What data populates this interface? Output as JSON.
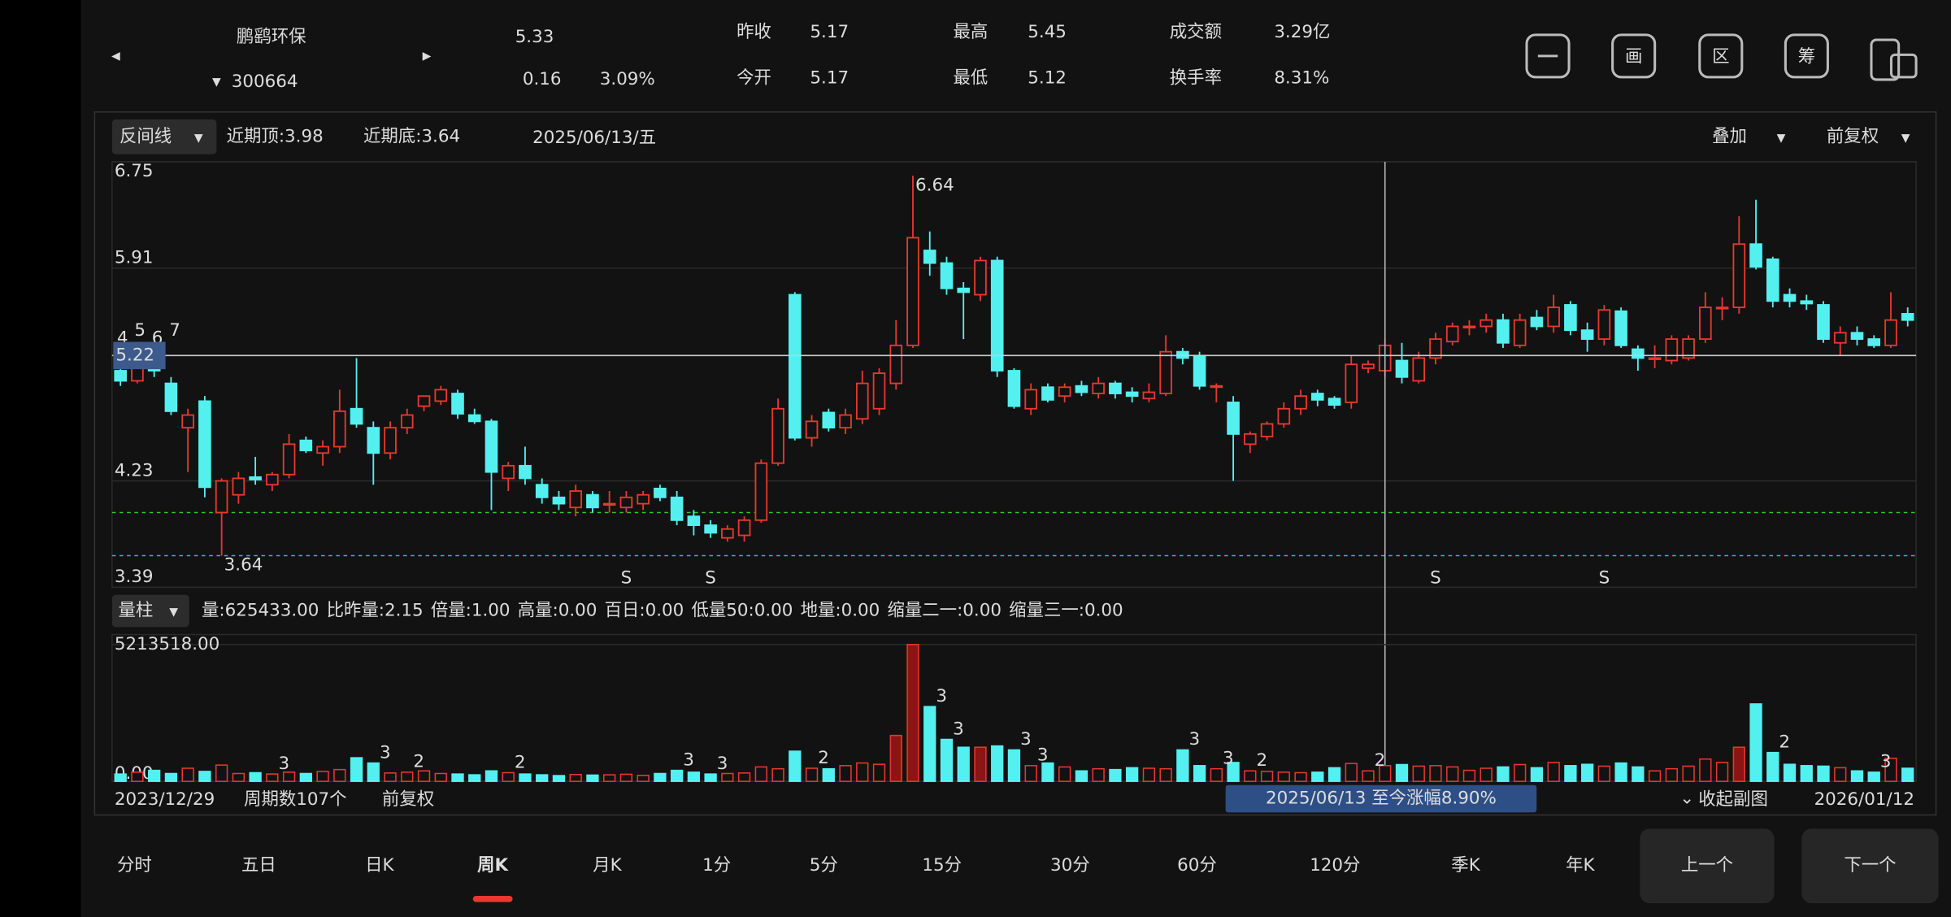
{
  "header": {
    "name": "鹏鹞环保",
    "code": "300664",
    "price": "5.33",
    "change": "0.16",
    "change_pct": "3.09%",
    "stats": [
      {
        "label": "昨收",
        "value": "5.17"
      },
      {
        "label": "今开",
        "value": "5.17"
      },
      {
        "label": "最高",
        "value": "5.45"
      },
      {
        "label": "最低",
        "value": "5.12"
      },
      {
        "label": "成交额",
        "value": "3.29亿"
      },
      {
        "label": "换手率",
        "value": "8.31%"
      }
    ],
    "tools": [
      "画",
      "区",
      "筹"
    ]
  },
  "chart": {
    "type": "candlestick",
    "indicator": "反间线",
    "recent_top_label": "近期顶:",
    "recent_top": 3.98,
    "recent_bottom_label": "近期底:",
    "recent_bottom": 3.64,
    "date": "2025/06/13/五",
    "overlay": "叠加",
    "adjust": "前复权",
    "ylim": [
      3.39,
      6.75
    ],
    "yticks": [
      6.75,
      5.91,
      4.23,
      3.39
    ],
    "crosshair": {
      "index": 75,
      "price": 5.22
    },
    "annotations": [
      {
        "index": 47,
        "price": 6.64
      },
      {
        "index": 6,
        "price": 3.64
      }
    ],
    "ma_digits": [
      "4",
      "5",
      "6",
      "7"
    ],
    "up_color": "#e8382f",
    "down_color": "#54f0f0",
    "candles": [
      [
        5.1,
        5.15,
        4.98,
        5.02
      ],
      [
        5.02,
        5.18,
        5.0,
        5.12
      ],
      [
        5.12,
        5.25,
        5.05,
        5.1
      ],
      [
        5.0,
        5.05,
        4.75,
        4.78
      ],
      [
        4.65,
        4.8,
        4.3,
        4.75
      ],
      [
        4.86,
        4.9,
        4.1,
        4.18
      ],
      [
        3.98,
        4.25,
        3.64,
        4.23
      ],
      [
        4.12,
        4.3,
        4.05,
        4.25
      ],
      [
        4.26,
        4.42,
        4.2,
        4.24
      ],
      [
        4.2,
        4.3,
        4.15,
        4.28
      ],
      [
        4.28,
        4.6,
        4.25,
        4.52
      ],
      [
        4.55,
        4.58,
        4.45,
        4.47
      ],
      [
        4.45,
        4.55,
        4.35,
        4.5
      ],
      [
        4.5,
        4.95,
        4.45,
        4.78
      ],
      [
        4.8,
        5.2,
        4.65,
        4.68
      ],
      [
        4.65,
        4.7,
        4.2,
        4.45
      ],
      [
        4.45,
        4.7,
        4.4,
        4.65
      ],
      [
        4.65,
        4.8,
        4.6,
        4.75
      ],
      [
        4.82,
        4.9,
        4.78,
        4.9
      ],
      [
        4.86,
        4.98,
        4.83,
        4.95
      ],
      [
        4.92,
        4.95,
        4.72,
        4.76
      ],
      [
        4.75,
        4.8,
        4.68,
        4.7
      ],
      [
        4.7,
        4.72,
        4.0,
        4.3
      ],
      [
        4.25,
        4.38,
        4.15,
        4.35
      ],
      [
        4.35,
        4.5,
        4.2,
        4.25
      ],
      [
        4.2,
        4.25,
        4.05,
        4.1
      ],
      [
        4.1,
        4.15,
        4.0,
        4.05
      ],
      [
        4.02,
        4.2,
        3.95,
        4.15
      ],
      [
        4.12,
        4.15,
        3.98,
        4.02
      ],
      [
        4.05,
        4.15,
        3.98,
        4.05
      ],
      [
        4.02,
        4.15,
        3.98,
        4.1
      ],
      [
        4.05,
        4.15,
        4.0,
        4.12
      ],
      [
        4.17,
        4.2,
        4.07,
        4.1
      ],
      [
        4.1,
        4.15,
        3.88,
        3.92
      ],
      [
        3.95,
        4.0,
        3.8,
        3.88
      ],
      [
        3.88,
        3.92,
        3.78,
        3.82
      ],
      [
        3.78,
        3.88,
        3.75,
        3.85
      ],
      [
        3.8,
        3.95,
        3.75,
        3.92
      ],
      [
        3.92,
        4.4,
        3.9,
        4.37
      ],
      [
        4.37,
        4.88,
        4.35,
        4.8
      ],
      [
        5.7,
        5.72,
        4.55,
        4.57
      ],
      [
        4.57,
        4.75,
        4.5,
        4.7
      ],
      [
        4.77,
        4.8,
        4.62,
        4.65
      ],
      [
        4.65,
        4.8,
        4.6,
        4.75
      ],
      [
        4.72,
        5.1,
        4.68,
        5.0
      ],
      [
        4.8,
        5.12,
        4.75,
        5.08
      ],
      [
        5.0,
        5.5,
        4.95,
        5.3
      ],
      [
        5.3,
        6.64,
        5.28,
        6.15
      ],
      [
        6.05,
        6.2,
        5.85,
        5.95
      ],
      [
        5.95,
        6.0,
        5.7,
        5.75
      ],
      [
        5.75,
        5.8,
        5.35,
        5.72
      ],
      [
        5.7,
        6.0,
        5.65,
        5.97
      ],
      [
        5.97,
        6.0,
        5.05,
        5.1
      ],
      [
        5.1,
        5.12,
        4.8,
        4.82
      ],
      [
        4.8,
        5.0,
        4.75,
        4.95
      ],
      [
        4.97,
        5.0,
        4.85,
        4.87
      ],
      [
        4.9,
        5.0,
        4.85,
        4.97
      ],
      [
        4.98,
        5.02,
        4.9,
        4.93
      ],
      [
        4.92,
        5.05,
        4.88,
        5.0
      ],
      [
        5.0,
        5.02,
        4.88,
        4.92
      ],
      [
        4.93,
        4.97,
        4.85,
        4.9
      ],
      [
        4.88,
        5.0,
        4.85,
        4.93
      ],
      [
        4.92,
        5.38,
        4.9,
        5.25
      ],
      [
        5.25,
        5.28,
        5.15,
        5.2
      ],
      [
        5.22,
        5.25,
        4.95,
        4.98
      ],
      [
        4.97,
        5.0,
        4.85,
        4.98
      ],
      [
        4.85,
        4.9,
        4.23,
        4.6
      ],
      [
        4.52,
        4.62,
        4.45,
        4.6
      ],
      [
        4.58,
        4.7,
        4.55,
        4.68
      ],
      [
        4.68,
        4.85,
        4.65,
        4.8
      ],
      [
        4.8,
        4.95,
        4.75,
        4.9
      ],
      [
        4.92,
        4.95,
        4.82,
        4.87
      ],
      [
        4.88,
        4.9,
        4.8,
        4.83
      ],
      [
        4.85,
        5.22,
        4.8,
        5.15
      ],
      [
        5.12,
        5.18,
        5.08,
        5.15
      ],
      [
        5.1,
        5.35,
        5.05,
        5.3
      ],
      [
        5.18,
        5.32,
        5.0,
        5.05
      ],
      [
        5.02,
        5.25,
        5.0,
        5.2
      ],
      [
        5.2,
        5.4,
        5.15,
        5.35
      ],
      [
        5.33,
        5.48,
        5.3,
        5.45
      ],
      [
        5.45,
        5.5,
        5.38,
        5.45
      ],
      [
        5.45,
        5.55,
        5.4,
        5.5
      ],
      [
        5.5,
        5.55,
        5.28,
        5.32
      ],
      [
        5.3,
        5.55,
        5.28,
        5.5
      ],
      [
        5.52,
        5.58,
        5.42,
        5.45
      ],
      [
        5.45,
        5.7,
        5.4,
        5.6
      ],
      [
        5.62,
        5.65,
        5.38,
        5.42
      ],
      [
        5.42,
        5.48,
        5.25,
        5.35
      ],
      [
        5.35,
        5.62,
        5.3,
        5.58
      ],
      [
        5.57,
        5.6,
        5.28,
        5.3
      ],
      [
        5.27,
        5.3,
        5.1,
        5.2
      ],
      [
        5.2,
        5.3,
        5.12,
        5.2
      ],
      [
        5.18,
        5.38,
        5.15,
        5.35
      ],
      [
        5.2,
        5.38,
        5.18,
        5.35
      ],
      [
        5.35,
        5.72,
        5.32,
        5.6
      ],
      [
        5.6,
        5.68,
        5.5,
        5.6
      ],
      [
        5.6,
        6.32,
        5.55,
        6.1
      ],
      [
        6.1,
        6.45,
        5.9,
        5.92
      ],
      [
        5.98,
        6.0,
        5.6,
        5.65
      ],
      [
        5.7,
        5.75,
        5.6,
        5.65
      ],
      [
        5.65,
        5.7,
        5.58,
        5.63
      ],
      [
        5.62,
        5.65,
        5.32,
        5.35
      ],
      [
        5.32,
        5.45,
        5.22,
        5.4
      ],
      [
        5.4,
        5.45,
        5.3,
        5.35
      ],
      [
        5.35,
        5.38,
        5.28,
        5.3
      ],
      [
        5.3,
        5.72,
        5.28,
        5.5
      ],
      [
        5.55,
        5.6,
        5.45,
        5.5
      ]
    ],
    "signals": [
      {
        "index": 30,
        "label": "S"
      },
      {
        "index": 35,
        "label": "S"
      },
      {
        "index": 78,
        "label": "S"
      },
      {
        "index": 88,
        "label": "S"
      }
    ],
    "volume": {
      "selector": "量柱",
      "indicators": [
        {
          "text": "量:625433.00",
          "color": "#e6e6e6"
        },
        {
          "text": "比昨量:2.15",
          "color": "#f5e625"
        },
        {
          "text": "倍量:1.00",
          "color": "#f5e625"
        },
        {
          "text": "高量:0.00",
          "color": "#ff3030"
        },
        {
          "text": "百日:0.00",
          "color": "#3cc8ff"
        },
        {
          "text": "低量50:0.00",
          "color": "#f5e625"
        },
        {
          "text": "地量:0.00",
          "color": "#9a9a9a"
        },
        {
          "text": "缩量二一:0.00",
          "color": "#3cc83c"
        },
        {
          "text": "缩量三一:0.00",
          "color": "#3c8cff"
        }
      ],
      "ylim": [
        0,
        5213518
      ],
      "yticks": [
        {
          "value": 5213518,
          "label": "5213518.00"
        },
        {
          "value": 0,
          "label": "0.00"
        }
      ],
      "values": [
        280000,
        350000,
        420000,
        300000,
        500000,
        380000,
        620000,
        300000,
        330000,
        280000,
        350000,
        300000,
        380000,
        450000,
        900000,
        700000,
        320000,
        350000,
        400000,
        300000,
        280000,
        250000,
        400000,
        330000,
        280000,
        250000,
        220000,
        260000,
        240000,
        250000,
        270000,
        230000,
        300000,
        420000,
        350000,
        280000,
        300000,
        320000,
        550000,
        480000,
        1150000,
        500000,
        480000,
        600000,
        700000,
        650000,
        1750000,
        5213518,
        2850000,
        1600000,
        1300000,
        1300000,
        1350000,
        1200000,
        600000,
        700000,
        550000,
        400000,
        480000,
        450000,
        520000,
        500000,
        480000,
        1200000,
        600000,
        480000,
        720000,
        400000,
        380000,
        350000,
        330000,
        350000,
        520000,
        680000,
        400000,
        600000,
        640000,
        580000,
        600000,
        550000,
        420000,
        500000,
        550000,
        640000,
        520000,
        720000,
        600000,
        650000,
        580000,
        700000,
        550000,
        400000,
        480000,
        580000,
        850000,
        720000,
        1300000,
        2950000,
        1100000,
        650000,
        600000,
        580000,
        520000,
        400000,
        350000,
        880000,
        500000
      ],
      "markers": [
        {
          "index": 9,
          "label": "3"
        },
        {
          "index": 15,
          "label": "3"
        },
        {
          "index": 17,
          "label": "2"
        },
        {
          "index": 23,
          "label": "2"
        },
        {
          "index": 33,
          "label": "3"
        },
        {
          "index": 35,
          "label": "3"
        },
        {
          "index": 41,
          "label": "2"
        },
        {
          "index": 48,
          "label": "3"
        },
        {
          "index": 49,
          "label": "3"
        },
        {
          "index": 53,
          "label": "3"
        },
        {
          "index": 54,
          "label": "3"
        },
        {
          "index": 63,
          "label": "3"
        },
        {
          "index": 65,
          "label": "3"
        },
        {
          "index": 67,
          "label": "2"
        },
        {
          "index": 74,
          "label": "2"
        },
        {
          "index": 98,
          "label": "2"
        },
        {
          "index": 104,
          "label": "3"
        }
      ]
    }
  },
  "footer": {
    "start_date": "2023/12/29",
    "periods": "周期数107个",
    "adjust": "前复权",
    "range_note": "2025/06/13 至今涨幅8.90%",
    "collapse": "收起副图",
    "end_date": "2026/01/12"
  },
  "tabs": {
    "items": [
      "分时",
      "五日",
      "日K",
      "周K",
      "月K",
      "1分",
      "5分",
      "15分",
      "30分",
      "60分",
      "120分",
      "季K",
      "年K"
    ],
    "selected": 3,
    "prev": "上一个",
    "next": "下一个"
  }
}
